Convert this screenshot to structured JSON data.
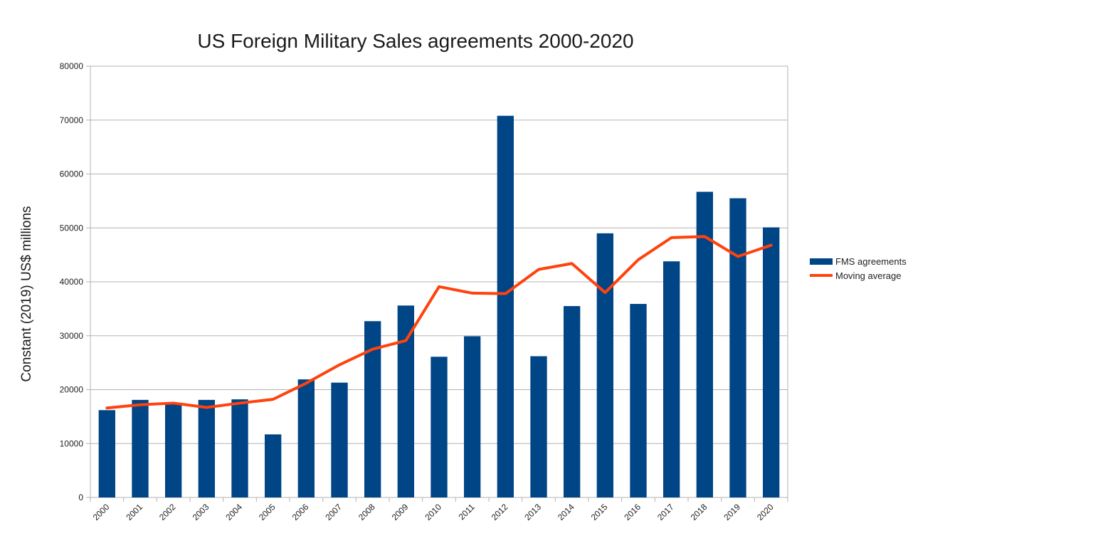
{
  "chart_data": {
    "type": "bar",
    "title": "US Foreign Military Sales agreements 2000-2020",
    "xlabel": "",
    "ylabel": "Constant (2019) US$ millions",
    "ylim": [
      0,
      80000
    ],
    "yticks": [
      0,
      10000,
      20000,
      30000,
      40000,
      50000,
      60000,
      70000,
      80000
    ],
    "grid": true,
    "legend_position": "right",
    "categories": [
      "2000",
      "2001",
      "2002",
      "2003",
      "2004",
      "2005",
      "2006",
      "2007",
      "2008",
      "2009",
      "2010",
      "2011",
      "2012",
      "2013",
      "2014",
      "2015",
      "2016",
      "2017",
      "2018",
      "2019",
      "2020"
    ],
    "series": [
      {
        "name": "FMS agreements",
        "type": "bar",
        "color": "#004586",
        "values": [
          16200,
          18100,
          17300,
          18100,
          18200,
          11700,
          21900,
          21300,
          32700,
          35600,
          26100,
          29900,
          70800,
          26200,
          35500,
          49000,
          35900,
          43800,
          56700,
          55500,
          50100
        ]
      },
      {
        "name": "Moving average",
        "type": "line",
        "color": "#ff420e",
        "values": [
          16600,
          17200,
          17500,
          16700,
          17500,
          18200,
          21200,
          24600,
          27500,
          29100,
          39100,
          37900,
          37800,
          42300,
          43400,
          38000,
          44100,
          48200,
          48400,
          44700,
          46800
        ]
      }
    ]
  }
}
